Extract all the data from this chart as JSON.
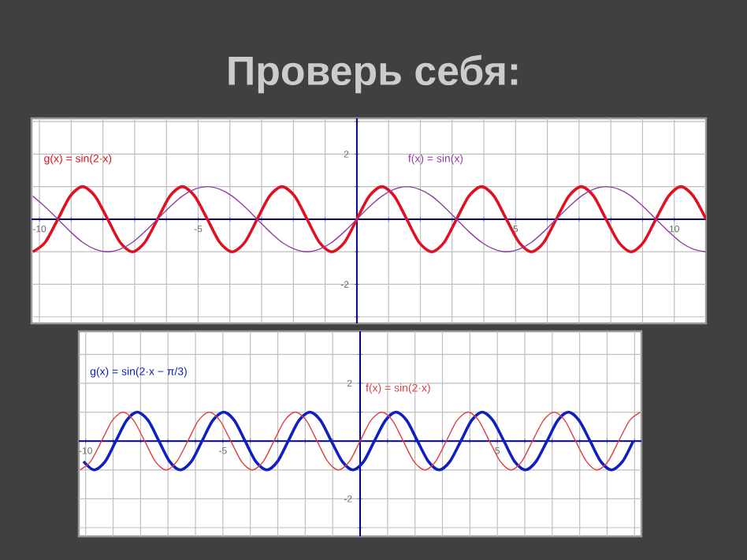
{
  "chart_data": [
    {
      "type": "line",
      "title": "Проверь себя:",
      "grid": true,
      "xlim": [
        -10.25,
        11.0
      ],
      "ylim": [
        -3.2,
        3.1
      ],
      "xticks": [
        -10,
        {
          "value": -9,
          "label": null
        },
        {
          "value": -8,
          "label": null
        },
        {
          "value": -7,
          "label": null
        },
        {
          "value": -6,
          "label": null
        },
        -5,
        {
          "value": -4,
          "label": null
        },
        {
          "value": -3,
          "label": null
        },
        {
          "value": -2,
          "label": null
        },
        {
          "value": -1,
          "label": null
        },
        {
          "value": 1,
          "label": null
        },
        {
          "value": 2,
          "label": null
        },
        {
          "value": 3,
          "label": null
        },
        {
          "value": 4,
          "label": null
        },
        5,
        {
          "value": 6,
          "label": null
        },
        {
          "value": 7,
          "label": null
        },
        {
          "value": 8,
          "label": null
        },
        {
          "value": 9,
          "label": null
        },
        10
      ],
      "yticks": [
        {
          "value": -3,
          "label": null
        },
        -2,
        {
          "value": -1,
          "label": null
        },
        {
          "value": 1,
          "label": null
        },
        2,
        {
          "value": 3,
          "label": null
        }
      ],
      "x": [
        -10.21,
        -9.82,
        -9.42,
        -9.03,
        -8.64,
        -8.25,
        -7.85,
        -7.46,
        -7.07,
        -6.68,
        -6.28,
        -5.89,
        -5.5,
        -5.11,
        -4.71,
        -4.32,
        -3.93,
        -3.53,
        -3.14,
        -2.75,
        -2.36,
        -1.96,
        -1.57,
        -1.18,
        -0.79,
        -0.39,
        0,
        0.39,
        0.79,
        1.18,
        1.57,
        1.96,
        2.36,
        2.75,
        3.14,
        3.53,
        3.93,
        4.32,
        4.71,
        5.11,
        5.5,
        5.89,
        6.28,
        6.68,
        7.07,
        7.46,
        7.85,
        8.25,
        8.64,
        9.03,
        9.42,
        9.82,
        10.21,
        10.6,
        11.0
      ],
      "series": [
        {
          "name": "g(x) = sin(2·x)",
          "color": "#e01020",
          "values": [
            -1,
            -0.71,
            0,
            0.71,
            1,
            0.71,
            0,
            -0.71,
            -1,
            -0.71,
            0,
            0.71,
            1,
            0.71,
            0,
            -0.71,
            -1,
            -0.71,
            0,
            0.71,
            1,
            0.71,
            0,
            -0.71,
            -1,
            -0.71,
            0,
            0.71,
            1,
            0.71,
            0,
            -0.71,
            -1,
            -0.71,
            0,
            0.71,
            1,
            0.71,
            0,
            -0.71,
            -1,
            -0.71,
            0,
            0.71,
            1,
            0.71,
            0,
            -0.71,
            -1,
            -0.71,
            0,
            0.71,
            1,
            0.71,
            0
          ]
        },
        {
          "name": "f(x) = sin(x)",
          "color": "#9040a0",
          "values": [
            0.71,
            0.38,
            0,
            -0.38,
            -0.71,
            -0.92,
            -1,
            -0.92,
            -0.71,
            -0.38,
            0,
            0.38,
            0.71,
            0.92,
            1,
            0.92,
            0.71,
            0.38,
            0,
            -0.38,
            -0.71,
            -0.92,
            -1,
            -0.92,
            -0.71,
            -0.38,
            0,
            0.38,
            0.71,
            0.92,
            1,
            0.92,
            0.71,
            0.38,
            0,
            -0.38,
            -0.71,
            -0.92,
            -1,
            -0.92,
            -0.71,
            -0.38,
            0,
            0.38,
            0.71,
            0.92,
            1,
            0.92,
            0.71,
            0.38,
            0,
            -0.38,
            -0.71,
            -0.92,
            -1
          ]
        }
      ]
    },
    {
      "type": "line",
      "grid": true,
      "xlim": [
        -10.25,
        10.25
      ],
      "ylim": [
        -3.3,
        3.8
      ],
      "xticks": [
        -10,
        {
          "value": -9,
          "label": null
        },
        {
          "value": -8,
          "label": null
        },
        {
          "value": -7,
          "label": null
        },
        {
          "value": -6,
          "label": null
        },
        -5,
        {
          "value": -4,
          "label": null
        },
        {
          "value": -3,
          "label": null
        },
        {
          "value": -2,
          "label": null
        },
        {
          "value": -1,
          "label": null
        },
        {
          "value": 1,
          "label": null
        },
        {
          "value": 2,
          "label": null
        },
        {
          "value": 3,
          "label": null
        },
        {
          "value": 4,
          "label": null
        },
        5,
        {
          "value": 6,
          "label": null
        },
        {
          "value": 7,
          "label": null
        },
        {
          "value": 8,
          "label": null
        },
        {
          "value": 9,
          "label": null
        },
        {
          "value": 10,
          "label": null
        }
      ],
      "yticks": [
        {
          "value": -3,
          "label": null
        },
        -2,
        {
          "value": -1,
          "label": null
        },
        {
          "value": 1,
          "label": null
        },
        2,
        {
          "value": 3,
          "label": null
        }
      ],
      "series": [
        {
          "name": "g(x) = sin(2·x − π/3)",
          "color": "#1020c0",
          "x": [
            -10.08,
            -9.69,
            -9.29,
            -8.9,
            -8.51,
            -8.12,
            -7.72,
            -7.33,
            -6.94,
            -6.55,
            -6.15,
            -5.76,
            -5.37,
            -4.97,
            -4.58,
            -4.19,
            -3.8,
            -3.4,
            -3.01,
            -2.62,
            -2.23,
            -1.83,
            -1.44,
            -1.05,
            -0.65,
            -0.26,
            0.13,
            0.52,
            0.92,
            1.31,
            1.7,
            2.09,
            2.49,
            2.88,
            3.27,
            3.67,
            4.06,
            4.45,
            4.84,
            5.24,
            5.63,
            6.02,
            6.41,
            6.81,
            7.2,
            7.59,
            7.98,
            8.38,
            8.77,
            9.16,
            9.56,
            9.95
          ],
          "values": [
            -0.71,
            -1,
            -0.71,
            0,
            0.71,
            1,
            0.71,
            0,
            -0.71,
            -1,
            -0.71,
            0,
            0.71,
            1,
            0.71,
            0,
            -0.71,
            -1,
            -0.71,
            0,
            0.71,
            1,
            0.71,
            0,
            -0.71,
            -1,
            -0.71,
            0,
            0.71,
            1,
            0.71,
            0,
            -0.71,
            -1,
            -0.71,
            0,
            0.71,
            1,
            0.71,
            0,
            -0.71,
            -1,
            -0.71,
            0,
            0.71,
            1,
            0.71,
            0,
            -0.71,
            -1,
            -0.71,
            0
          ]
        },
        {
          "name": "f(x) = sin(2·x)",
          "color": "#e04040",
          "x": [
            -10.21,
            -9.82,
            -9.42,
            -9.03,
            -8.64,
            -8.25,
            -7.85,
            -7.46,
            -7.07,
            -6.68,
            -6.28,
            -5.89,
            -5.5,
            -5.11,
            -4.71,
            -4.32,
            -3.93,
            -3.53,
            -3.14,
            -2.75,
            -2.36,
            -1.96,
            -1.57,
            -1.18,
            -0.79,
            -0.39,
            0,
            0.39,
            0.79,
            1.18,
            1.57,
            1.96,
            2.36,
            2.75,
            3.14,
            3.53,
            3.93,
            4.32,
            4.71,
            5.11,
            5.5,
            5.89,
            6.28,
            6.68,
            7.07,
            7.46,
            7.85,
            8.25,
            8.64,
            9.03,
            9.42,
            9.82,
            10.21
          ],
          "values": [
            -1,
            -0.71,
            0,
            0.71,
            1,
            0.71,
            0,
            -0.71,
            -1,
            -0.71,
            0,
            0.71,
            1,
            0.71,
            0,
            -0.71,
            -1,
            -0.71,
            0,
            0.71,
            1,
            0.71,
            0,
            -0.71,
            -1,
            -0.71,
            0,
            0.71,
            1,
            0.71,
            0,
            -0.71,
            -1,
            -0.71,
            0,
            0.71,
            1,
            0.71,
            0,
            -0.71,
            -1,
            -0.71,
            0,
            0.71,
            1,
            0.71,
            0,
            -0.71,
            -1,
            -0.71,
            0,
            0.71,
            1
          ]
        }
      ]
    }
  ]
}
